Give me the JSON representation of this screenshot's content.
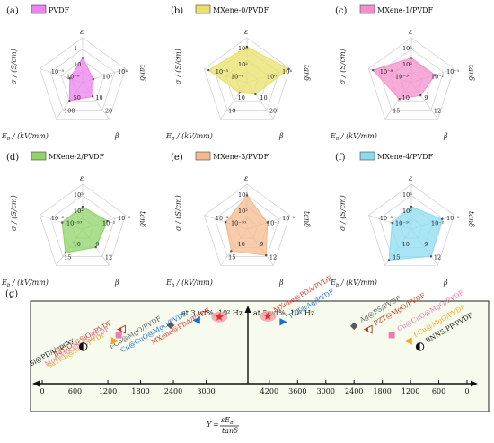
{
  "chart_data": [
    {
      "type": "radar",
      "panel": "(a)",
      "legend": "PVDF",
      "color": "#ee82ee",
      "axes": [
        {
          "label": "ε",
          "ticks": [
            "10",
            "1"
          ]
        },
        {
          "label": "tanδ",
          "ticks": [
            "10⁰",
            "10⁴"
          ]
        },
        {
          "label": "β",
          "ticks": [
            "10",
            "20"
          ]
        },
        {
          "label": "E_b / (kV/mm)",
          "ticks": [
            "50",
            "100"
          ]
        },
        {
          "label": "σ / (S/cm)",
          "ticks": [
            "10⁻⁸",
            "10⁻⁵"
          ]
        }
      ],
      "values": [
        0.55,
        0.25,
        0.38,
        0.5,
        0.3
      ]
    },
    {
      "type": "radar",
      "panel": "(b)",
      "legend": "MXene-0/PVDF",
      "color": "#e8e06a",
      "axes": [
        {
          "label": "ε",
          "ticks": [
            "10²",
            "10³"
          ]
        },
        {
          "label": "tanδ",
          "ticks": [
            "10⁰",
            "10⁴"
          ]
        },
        {
          "label": "β",
          "ticks": [
            "10",
            "20"
          ]
        },
        {
          "label": "E_b / (kV/mm)",
          "ticks": [
            "10",
            "10"
          ]
        },
        {
          "label": "σ / (S/cm)",
          "ticks": [
            "10⁻⁸",
            "10⁻⁵"
          ]
        }
      ],
      "values": [
        0.8,
        0.98,
        0.32,
        0.28,
        0.9
      ]
    },
    {
      "type": "radar",
      "panel": "(c)",
      "legend": "MXene-1/PVDF",
      "color": "#f48fcb",
      "axes": [
        {
          "label": "ε",
          "ticks": [
            "10²",
            "10³"
          ]
        },
        {
          "label": "tanδ",
          "ticks": [
            "10⁻²",
            "10⁻¹"
          ]
        },
        {
          "label": "β",
          "ticks": [
            "9",
            "12"
          ]
        },
        {
          "label": "E_b / (kV/mm)",
          "ticks": [
            "10",
            "15"
          ]
        },
        {
          "label": "σ / (S/cm)",
          "ticks": [
            "10⁻¹⁰",
            "10⁻⁸"
          ]
        }
      ],
      "values": [
        0.55,
        0.55,
        0.35,
        0.45,
        0.9
      ]
    },
    {
      "type": "radar",
      "panel": "(d)",
      "legend": "MXene-2/PVDF",
      "color": "#8fd36a",
      "axes": [
        {
          "label": "ε",
          "ticks": [
            "10²",
            "10³"
          ]
        },
        {
          "label": "tanδ",
          "ticks": [
            "10⁻²",
            "10⁻¹"
          ]
        },
        {
          "label": "β",
          "ticks": [
            "9",
            "12"
          ]
        },
        {
          "label": "E_b / (kV/mm)",
          "ticks": [
            "10",
            "15"
          ]
        },
        {
          "label": "σ / (S/cm)",
          "ticks": [
            "10⁻¹⁰",
            "10⁻⁸"
          ]
        }
      ],
      "values": [
        0.5,
        0.58,
        0.5,
        0.65,
        0.48
      ]
    },
    {
      "type": "radar",
      "panel": "(e)",
      "legend": "MXene-3/PVDF",
      "color": "#f5b98f",
      "axes": [
        {
          "label": "ε",
          "ticks": [
            "10²",
            "10³"
          ]
        },
        {
          "label": "tanδ",
          "ticks": [
            "10⁻²",
            "10⁻¹"
          ]
        },
        {
          "label": "β",
          "ticks": [
            "9",
            "12"
          ]
        },
        {
          "label": "E_b / (kV/mm)",
          "ticks": [
            "10",
            "15"
          ]
        },
        {
          "label": "σ / (S/cm)",
          "ticks": [
            "10⁻¹⁰",
            "10⁻⁸"
          ]
        }
      ],
      "values": [
        0.75,
        0.48,
        0.72,
        0.6,
        0.5
      ]
    },
    {
      "type": "radar",
      "panel": "(f)",
      "legend": "MXene-4/PVDF",
      "color": "#8cdcf0",
      "axes": [
        {
          "label": "ε",
          "ticks": [
            "10²",
            "10³"
          ]
        },
        {
          "label": "tanδ",
          "ticks": [
            "10⁻²",
            "10⁻¹"
          ]
        },
        {
          "label": "β",
          "ticks": [
            "9",
            "12"
          ]
        },
        {
          "label": "E_b / (kV/mm)",
          "ticks": [
            "10",
            "15"
          ]
        },
        {
          "label": "σ / (S/cm)",
          "ticks": [
            "10⁻¹⁰",
            "10⁻⁸"
          ]
        }
      ],
      "values": [
        0.5,
        0.72,
        0.75,
        0.85,
        0.45
      ]
    },
    {
      "type": "scatter",
      "panel": "(g)",
      "left_title": "at 3 wt%, 10² Hz",
      "right_title": "at 5 wt%, 10² Hz",
      "xlabel": "Y = εE_b / tanδ",
      "xlabel_parts": {
        "y": "Y",
        "eq": "=",
        "numerator": "εE",
        "sub": "b",
        "denominator": "tanδ"
      },
      "left_axis": {
        "ticks": [
          0,
          600,
          1200,
          1800,
          2400,
          3000
        ]
      },
      "right_axis": {
        "ticks": [
          4200,
          3600,
          3000,
          2400,
          1800,
          1200,
          600,
          0
        ]
      },
      "left_points": [
        {
          "label": "MXene@PDA/PVDF",
          "x": 3240,
          "y": 0.72,
          "marker": "star",
          "color": "#e0302a"
        },
        {
          "label": "Cu@CuO@MgO/PVDF",
          "x": 2820,
          "y": 0.68,
          "marker": "triangle-left",
          "color": "#1a6fd6"
        },
        {
          "label": "f-Cu@MgO/PVDF",
          "x": 2350,
          "y": 0.62,
          "marker": "diamond",
          "color": "#595959"
        },
        {
          "label": "BaTiO₃@SiO₂/PVDF",
          "x": 1450,
          "y": 0.57,
          "marker": "triangle-half",
          "color": "#c23b22"
        },
        {
          "label": "Mo@MoO₂@PS/PVDF",
          "x": 1400,
          "y": 0.5,
          "marker": "square",
          "color": "#f078b4"
        },
        {
          "label": "BaTiO₃@SiO₂/PVDF",
          "x": 1330,
          "y": 0.43,
          "marker": "triangle-right",
          "color": "#f5a623"
        },
        {
          "label": "Si@PDA/epoxy",
          "x": 750,
          "y": 0.36,
          "marker": "circle-half",
          "color": "#111111"
        }
      ],
      "right_points": [
        {
          "label": "MXene@PDA/PVDF",
          "x": 4230,
          "y": 0.73,
          "marker": "star",
          "color": "#e0302a"
        },
        {
          "label": "PZT@Ag/PVDF",
          "x": 3900,
          "y": 0.66,
          "marker": "triangle-right",
          "color": "#1a6fd6"
        },
        {
          "label": "Ag@PS/PVDF",
          "x": 2400,
          "y": 0.61,
          "marker": "diamond",
          "color": "#595959"
        },
        {
          "label": "PZT@MgO/PVDF",
          "x": 2100,
          "y": 0.57,
          "marker": "triangle-half",
          "color": "#c23b22"
        },
        {
          "label": "Cu@CuO@MgO/PVDF",
          "x": 1600,
          "y": 0.5,
          "marker": "square",
          "color": "#f078b4"
        },
        {
          "label": "f-Cu@MgO/PVDF",
          "x": 1250,
          "y": 0.43,
          "marker": "triangle-left",
          "color": "#f5a623"
        },
        {
          "label": "BNNS/PP-PVDF",
          "x": 1000,
          "y": 0.36,
          "marker": "circle-half",
          "color": "#111111"
        }
      ]
    }
  ]
}
